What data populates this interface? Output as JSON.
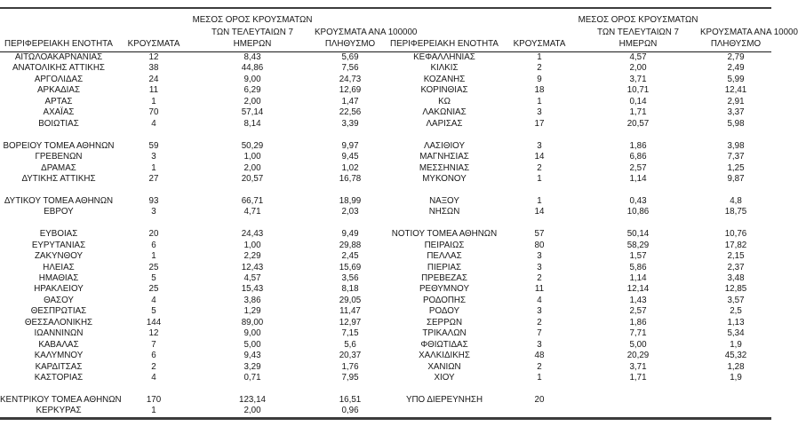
{
  "page": {
    "background_color": "#ffffff",
    "border_color": "#3c3c3c",
    "text_color": "#171717"
  },
  "table_left": {
    "headers": {
      "region": "ΠΕΡΙΦΕΡΕΙΑΚΗ ΕΝΟΤΗΤΑ",
      "cases": "ΚΡΟΥΣΜΑΤΑ",
      "avg7": "ΜΕΣΟΣ ΟΡΟΣ ΚΡΟΥΣΜΑΤΩΝ\nΤΩΝ ΤΕΛΕΥΤΑΙΩΝ 7\nΗΜΕΡΩΝ",
      "per100k": "ΚΡΟΥΣΜΑΤΑ ΑΝΑ 100000\nΠΛΗΘΥΣΜΟ"
    },
    "rows": [
      [
        "ΑΙΤΩΛΟΑΚΑΡΝΑΝΙΑΣ",
        "12",
        "8,43",
        "5,69"
      ],
      [
        "ΑΝΑΤΟΛΙΚΗΣ ΑΤΤΙΚΗΣ",
        "38",
        "44,86",
        "7,56"
      ],
      [
        "ΑΡΓΟΛΙΔΑΣ",
        "24",
        "9,00",
        "24,73"
      ],
      [
        "ΑΡΚΑΔΙΑΣ",
        "11",
        "6,29",
        "12,69"
      ],
      [
        "ΑΡΤΑΣ",
        "1",
        "2,00",
        "1,47"
      ],
      [
        "ΑΧΑΪΑΣ",
        "70",
        "57,14",
        "22,56"
      ],
      [
        "ΒΟΙΩΤΙΑΣ",
        "4",
        "8,14",
        "3,39"
      ],
      null,
      [
        "ΒΟΡΕΙΟΥ ΤΟΜΕΑ ΑΘΗΝΩΝ",
        "59",
        "50,29",
        "9,97"
      ],
      [
        "ΓΡΕΒΕΝΩΝ",
        "3",
        "1,00",
        "9,45"
      ],
      [
        "ΔΡΑΜΑΣ",
        "1",
        "2,00",
        "1,02"
      ],
      [
        "ΔΥΤΙΚΗΣ ΑΤΤΙΚΗΣ",
        "27",
        "20,57",
        "16,78"
      ],
      null,
      [
        "ΔΥΤΙΚΟΥ ΤΟΜΕΑ ΑΘΗΝΩΝ",
        "93",
        "66,71",
        "18,99"
      ],
      [
        "ΕΒΡΟΥ",
        "3",
        "4,71",
        "2,03"
      ],
      null,
      [
        "ΕΥΒΟΙΑΣ",
        "20",
        "24,43",
        "9,49"
      ],
      [
        "ΕΥΡΥΤΑΝΙΑΣ",
        "6",
        "1,00",
        "29,88"
      ],
      [
        "ΖΑΚΥΝΘΟΥ",
        "1",
        "2,29",
        "2,45"
      ],
      [
        "ΗΛΕΙΑΣ",
        "25",
        "12,43",
        "15,69"
      ],
      [
        "ΗΜΑΘΙΑΣ",
        "5",
        "4,57",
        "3,56"
      ],
      [
        "ΗΡΑΚΛΕΙΟΥ",
        "25",
        "15,43",
        "8,18"
      ],
      [
        "ΘΑΣΟΥ",
        "4",
        "3,86",
        "29,05"
      ],
      [
        "ΘΕΣΠΡΩΤΙΑΣ",
        "5",
        "1,29",
        "11,47"
      ],
      [
        "ΘΕΣΣΑΛΟΝΙΚΗΣ",
        "144",
        "89,00",
        "12,97"
      ],
      [
        "ΙΩΑΝΝΙΝΩΝ",
        "12",
        "9,00",
        "7,15"
      ],
      [
        "ΚΑΒΑΛΑΣ",
        "7",
        "5,00",
        "5,6"
      ],
      [
        "ΚΑΛΥΜΝΟΥ",
        "6",
        "9,43",
        "20,37"
      ],
      [
        "ΚΑΡΔΙΤΣΑΣ",
        "2",
        "3,29",
        "1,76"
      ],
      [
        "ΚΑΣΤΟΡΙΑΣ",
        "4",
        "0,71",
        "7,95"
      ],
      null,
      [
        "ΚΕΝΤΡΙΚΟΥ ΤΟΜΕΑ ΑΘΗΝΩΝ",
        "170",
        "123,14",
        "16,51"
      ],
      [
        "ΚΕΡΚΥΡΑΣ",
        "1",
        "2,00",
        "0,96"
      ]
    ]
  },
  "table_right": {
    "headers": {
      "region": "ΠΕΡΙΦΕΡΕΙΑΚΗ ΕΝΟΤΗΤΑ",
      "cases": "ΚΡΟΥΣΜΑΤΑ",
      "avg7": "ΜΕΣΟΣ ΟΡΟΣ ΚΡΟΥΣΜΑΤΩΝ\nΤΩΝ ΤΕΛΕΥΤΑΙΩΝ 7\nΗΜΕΡΩΝ",
      "per100k": "ΚΡΟΥΣΜΑΤΑ ΑΝΑ 10000\nΠΛΗΘΥΣΜΟ"
    },
    "rows": [
      [
        "ΚΕΦΑΛΛΗΝΙΑΣ",
        "1",
        "4,57",
        "2,79"
      ],
      [
        "ΚΙΛΚΙΣ",
        "2",
        "2,00",
        "2,49"
      ],
      [
        "ΚΟΖΑΝΗΣ",
        "9",
        "3,71",
        "5,99"
      ],
      [
        "ΚΟΡΙΝΘΙΑΣ",
        "18",
        "10,71",
        "12,41"
      ],
      [
        "ΚΩ",
        "1",
        "0,14",
        "2,91"
      ],
      [
        "ΛΑΚΩΝΙΑΣ",
        "3",
        "1,71",
        "3,37"
      ],
      [
        "ΛΑΡΙΣΑΣ",
        "17",
        "20,57",
        "5,98"
      ],
      null,
      [
        "ΛΑΣΙΘΙΟΥ",
        "3",
        "1,86",
        "3,98"
      ],
      [
        "ΜΑΓΝΗΣΙΑΣ",
        "14",
        "6,86",
        "7,37"
      ],
      [
        "ΜΕΣΣΗΝΙΑΣ",
        "2",
        "2,57",
        "1,25"
      ],
      [
        "ΜΥΚΟΝΟΥ",
        "1",
        "1,14",
        "9,87"
      ],
      null,
      [
        "ΝΑΞΟΥ",
        "1",
        "0,43",
        "4,8"
      ],
      [
        "ΝΗΣΩΝ",
        "14",
        "10,86",
        "18,75"
      ],
      null,
      [
        "ΝΟΤΙΟΥ ΤΟΜΕΑ ΑΘΗΝΩΝ",
        "57",
        "50,14",
        "10,76"
      ],
      [
        "ΠΕΙΡΑΙΩΣ",
        "80",
        "58,29",
        "17,82"
      ],
      [
        "ΠΕΛΛΑΣ",
        "3",
        "1,57",
        "2,15"
      ],
      [
        "ΠΙΕΡΙΑΣ",
        "3",
        "5,86",
        "2,37"
      ],
      [
        "ΠΡΕΒΕΖΑΣ",
        "2",
        "1,14",
        "3,48"
      ],
      [
        "ΡΕΘΥΜΝΟΥ",
        "11",
        "12,14",
        "12,85"
      ],
      [
        "ΡΟΔΟΠΗΣ",
        "4",
        "1,43",
        "3,57"
      ],
      [
        "ΡΟΔΟΥ",
        "3",
        "2,57",
        "2,5"
      ],
      [
        "ΣΕΡΡΩΝ",
        "2",
        "1,86",
        "1,13"
      ],
      [
        "ΤΡΙΚΑΛΩΝ",
        "7",
        "7,71",
        "5,34"
      ],
      [
        "ΦΘΙΩΤΙΔΑΣ",
        "3",
        "5,00",
        "1,9"
      ],
      [
        "ΧΑΛΚΙΔΙΚΗΣ",
        "48",
        "20,29",
        "45,32"
      ],
      [
        "ΧΑΝΙΩΝ",
        "2",
        "3,71",
        "1,28"
      ],
      [
        "ΧΙΟΥ",
        "1",
        "1,71",
        "1,9"
      ],
      null,
      [
        "ΥΠΟ ΔΙΕΡΕΥΝΗΣΗ",
        "20",
        "",
        ""
      ],
      null
    ]
  }
}
